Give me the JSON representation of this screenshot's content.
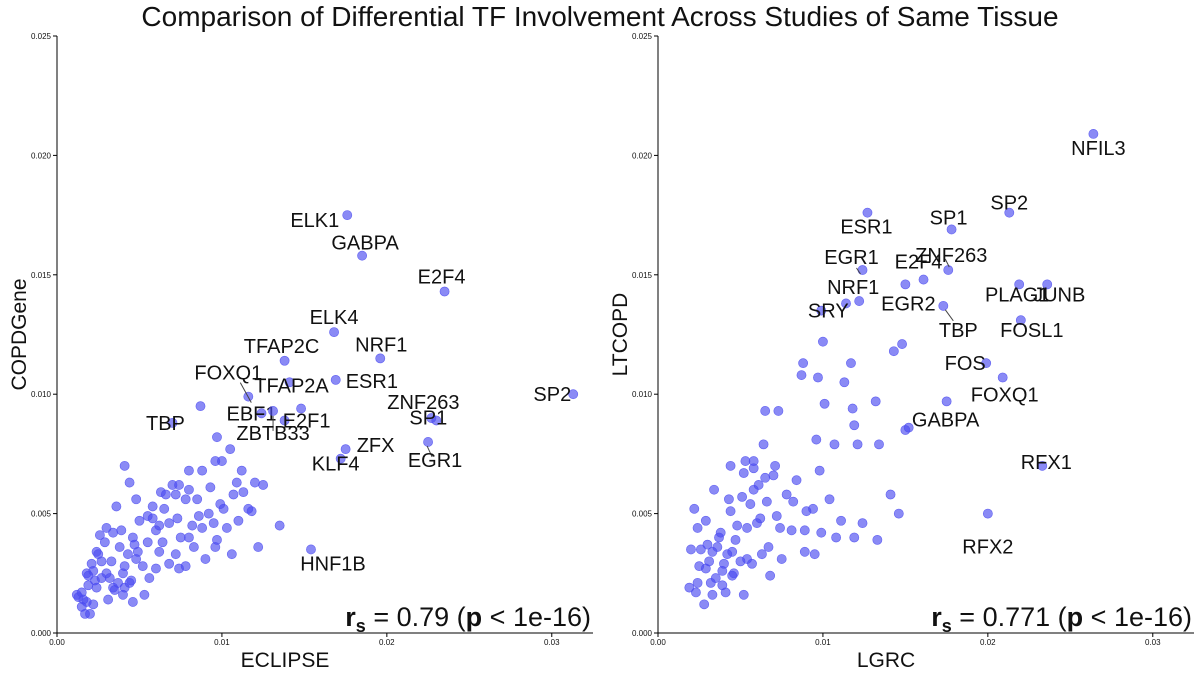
{
  "title": "Comparison of Differential TF Involvement Across Studies of Same Tissue",
  "colors": {
    "points": "#4b4bf0",
    "axis": "#000000",
    "connector": "#444444"
  },
  "chart_data": [
    {
      "type": "scatter",
      "xlabel": "ECLIPSE",
      "ylabel": "COPDGene",
      "xlim": [
        0,
        0.0325
      ],
      "ylim": [
        0,
        0.025
      ],
      "xticks": [
        "0.00",
        "0.01",
        "0.02",
        "0.03"
      ],
      "yticks": [
        "0.000",
        "0.005",
        "0.010",
        "0.015",
        "0.020",
        "0.025"
      ],
      "grid": false,
      "stat": {
        "r_label": "r",
        "r_sub": "s",
        "r_value": "0.79",
        "p_label": "p",
        "p_value": "1e-16"
      },
      "labeled_points": [
        {
          "label": "ELK1",
          "x": 0.0176,
          "y": 0.0175
        },
        {
          "label": "GABPA",
          "x": 0.0185,
          "y": 0.0158
        },
        {
          "label": "E2F4",
          "x": 0.0235,
          "y": 0.0143
        },
        {
          "label": "ELK4",
          "x": 0.0168,
          "y": 0.0126
        },
        {
          "label": "TFAP2C",
          "x": 0.0138,
          "y": 0.0114
        },
        {
          "label": "NRF1",
          "x": 0.0196,
          "y": 0.0115
        },
        {
          "label": "FOXQ1",
          "x": 0.0116,
          "y": 0.0099
        },
        {
          "label": "TFAP2A",
          "x": 0.0141,
          "y": 0.0105
        },
        {
          "label": "ESR1",
          "x": 0.0169,
          "y": 0.0106
        },
        {
          "label": "SP2",
          "x": 0.0313,
          "y": 0.01
        },
        {
          "label": "TBP",
          "x": 0.007,
          "y": 0.0088
        },
        {
          "label": "EBF1",
          "x": 0.0124,
          "y": 0.0092
        },
        {
          "label": "E2F1",
          "x": 0.0138,
          "y": 0.0089
        },
        {
          "label": "ZNF263",
          "x": 0.0227,
          "y": 0.009
        },
        {
          "label": "ZBTB33",
          "x": 0.0131,
          "y": 0.0093
        },
        {
          "label": "SP1",
          "x": 0.023,
          "y": 0.0089
        },
        {
          "label": "ZFX",
          "x": 0.0175,
          "y": 0.0077
        },
        {
          "label": "EGR1",
          "x": 0.0225,
          "y": 0.008
        },
        {
          "label": "KLF4",
          "x": 0.0172,
          "y": 0.0073
        },
        {
          "label": "HNF1B",
          "x": 0.0154,
          "y": 0.0035
        }
      ],
      "points": [
        [
          0.0135,
          0.0045
        ],
        [
          0.0148,
          0.0094
        ],
        [
          0.0087,
          0.0095
        ],
        [
          0.0097,
          0.0082
        ],
        [
          0.0105,
          0.0077
        ],
        [
          0.0122,
          0.0036
        ],
        [
          0.0112,
          0.0068
        ],
        [
          0.012,
          0.0063
        ],
        [
          0.0096,
          0.0072
        ],
        [
          0.008,
          0.0068
        ],
        [
          0.0088,
          0.0068
        ],
        [
          0.0072,
          0.0058
        ],
        [
          0.0063,
          0.0059
        ],
        [
          0.0058,
          0.0053
        ],
        [
          0.007,
          0.0062
        ],
        [
          0.008,
          0.006
        ],
        [
          0.0085,
          0.0056
        ],
        [
          0.0092,
          0.005
        ],
        [
          0.0099,
          0.0054
        ],
        [
          0.0101,
          0.0052
        ],
        [
          0.0107,
          0.0058
        ],
        [
          0.011,
          0.0047
        ],
        [
          0.0116,
          0.0052
        ],
        [
          0.0103,
          0.0044
        ],
        [
          0.0097,
          0.0039
        ],
        [
          0.0088,
          0.0044
        ],
        [
          0.008,
          0.004
        ],
        [
          0.0073,
          0.0048
        ],
        [
          0.0068,
          0.0046
        ],
        [
          0.0065,
          0.0052
        ],
        [
          0.006,
          0.0043
        ],
        [
          0.0055,
          0.0038
        ],
        [
          0.005,
          0.0047
        ],
        [
          0.0048,
          0.0056
        ],
        [
          0.0044,
          0.0063
        ],
        [
          0.0041,
          0.007
        ],
        [
          0.0036,
          0.0053
        ],
        [
          0.003,
          0.0044
        ],
        [
          0.0029,
          0.0038
        ],
        [
          0.0027,
          0.003
        ],
        [
          0.0024,
          0.0034
        ],
        [
          0.0022,
          0.0026
        ],
        [
          0.0019,
          0.002
        ],
        [
          0.0018,
          0.0013
        ],
        [
          0.0015,
          0.0011
        ],
        [
          0.0012,
          0.0016
        ],
        [
          0.0017,
          0.0008
        ],
        [
          0.0023,
          0.0022
        ],
        [
          0.0032,
          0.0023
        ],
        [
          0.0035,
          0.0018
        ],
        [
          0.004,
          0.0025
        ],
        [
          0.0044,
          0.0021
        ],
        [
          0.0048,
          0.0031
        ],
        [
          0.0052,
          0.0028
        ],
        [
          0.0056,
          0.0023
        ],
        [
          0.006,
          0.0027
        ],
        [
          0.0062,
          0.0034
        ],
        [
          0.0068,
          0.0029
        ],
        [
          0.0072,
          0.0033
        ],
        [
          0.0078,
          0.0028
        ],
        [
          0.0083,
          0.0036
        ],
        [
          0.009,
          0.0031
        ],
        [
          0.0096,
          0.0036
        ],
        [
          0.0046,
          0.0013
        ],
        [
          0.004,
          0.0016
        ],
        [
          0.0034,
          0.0019
        ],
        [
          0.003,
          0.0025
        ],
        [
          0.0038,
          0.0036
        ],
        [
          0.0043,
          0.0033
        ],
        [
          0.0053,
          0.0016
        ],
        [
          0.0046,
          0.004
        ],
        [
          0.0039,
          0.0043
        ],
        [
          0.0025,
          0.0033
        ],
        [
          0.0021,
          0.0029
        ],
        [
          0.0015,
          0.0017
        ],
        [
          0.002,
          0.0008
        ],
        [
          0.0018,
          0.0025
        ],
        [
          0.0031,
          0.0014
        ],
        [
          0.0037,
          0.0021
        ],
        [
          0.0041,
          0.0028
        ],
        [
          0.0055,
          0.0049
        ],
        [
          0.0062,
          0.0045
        ],
        [
          0.0066,
          0.0058
        ],
        [
          0.0074,
          0.0062
        ],
        [
          0.0078,
          0.0056
        ],
        [
          0.0086,
          0.0049
        ],
        [
          0.0093,
          0.0061
        ],
        [
          0.01,
          0.0072
        ],
        [
          0.0109,
          0.0063
        ],
        [
          0.0113,
          0.0059
        ],
        [
          0.0118,
          0.0051
        ],
        [
          0.0125,
          0.0062
        ],
        [
          0.0106,
          0.0033
        ],
        [
          0.0095,
          0.0046
        ],
        [
          0.0074,
          0.0027
        ],
        [
          0.0064,
          0.0038
        ],
        [
          0.0049,
          0.0034
        ],
        [
          0.0045,
          0.0022
        ],
        [
          0.0041,
          0.0019
        ],
        [
          0.0033,
          0.003
        ],
        [
          0.0027,
          0.0023
        ],
        [
          0.0024,
          0.0019
        ],
        [
          0.0019,
          0.0024
        ],
        [
          0.0016,
          0.0014
        ],
        [
          0.0013,
          0.0015
        ],
        [
          0.0022,
          0.0012
        ],
        [
          0.0026,
          0.0041
        ],
        [
          0.0034,
          0.0042
        ],
        [
          0.0047,
          0.0037
        ],
        [
          0.0058,
          0.0048
        ],
        [
          0.0075,
          0.004
        ],
        [
          0.0082,
          0.0045
        ]
      ]
    },
    {
      "type": "scatter",
      "xlabel": "LGRC",
      "ylabel": "LTCOPD",
      "xlim": [
        0,
        0.0325
      ],
      "ylim": [
        0,
        0.025
      ],
      "xticks": [
        "0.00",
        "0.01",
        "0.02",
        "0.03"
      ],
      "yticks": [
        "0.000",
        "0.005",
        "0.010",
        "0.015",
        "0.020",
        "0.025"
      ],
      "grid": false,
      "stat": {
        "r_label": "r",
        "r_sub": "s",
        "r_value": "0.771",
        "p_label": "p",
        "p_value": "1e-16"
      },
      "labeled_points": [
        {
          "label": "NFIL3",
          "x": 0.0264,
          "y": 0.0209
        },
        {
          "label": "SP2",
          "x": 0.0213,
          "y": 0.0176
        },
        {
          "label": "ESR1",
          "x": 0.0127,
          "y": 0.0176
        },
        {
          "label": "SP1",
          "x": 0.0178,
          "y": 0.0169
        },
        {
          "label": "ZNF263",
          "x": 0.0176,
          "y": 0.0152
        },
        {
          "label": "EGR1",
          "x": 0.0124,
          "y": 0.0152
        },
        {
          "label": "E2F4",
          "x": 0.0161,
          "y": 0.0148
        },
        {
          "label": "NRF1",
          "x": 0.0122,
          "y": 0.0139
        },
        {
          "label": "PLAG1",
          "x": 0.0219,
          "y": 0.0146
        },
        {
          "label": "JUNB",
          "x": 0.0236,
          "y": 0.0146
        },
        {
          "label": "EGR2",
          "x": 0.015,
          "y": 0.0146
        },
        {
          "label": "SRY",
          "x": 0.0099,
          "y": 0.0135
        },
        {
          "label": "TBP",
          "x": 0.0173,
          "y": 0.0137
        },
        {
          "label": "FOSL1",
          "x": 0.022,
          "y": 0.0131
        },
        {
          "label": "FOS",
          "x": 0.0199,
          "y": 0.0113
        },
        {
          "label": "FOXQ1",
          "x": 0.0209,
          "y": 0.0107
        },
        {
          "label": "GABPA",
          "x": 0.0175,
          "y": 0.0097
        },
        {
          "label": "RFX1",
          "x": 0.0233,
          "y": 0.007
        },
        {
          "label": "RFX2",
          "x": 0.02,
          "y": 0.005
        }
      ],
      "points": [
        [
          0.0114,
          0.0138
        ],
        [
          0.01,
          0.0122
        ],
        [
          0.0143,
          0.0118
        ],
        [
          0.0148,
          0.0121
        ],
        [
          0.0088,
          0.0113
        ],
        [
          0.0117,
          0.0113
        ],
        [
          0.0087,
          0.0108
        ],
        [
          0.0097,
          0.0107
        ],
        [
          0.0113,
          0.0105
        ],
        [
          0.0101,
          0.0096
        ],
        [
          0.0118,
          0.0094
        ],
        [
          0.0132,
          0.0097
        ],
        [
          0.015,
          0.0085
        ],
        [
          0.0152,
          0.0086
        ],
        [
          0.0134,
          0.0079
        ],
        [
          0.0119,
          0.0087
        ],
        [
          0.0107,
          0.0079
        ],
        [
          0.0096,
          0.0081
        ],
        [
          0.0065,
          0.0093
        ],
        [
          0.0073,
          0.0093
        ],
        [
          0.0064,
          0.0079
        ],
        [
          0.007,
          0.0066
        ],
        [
          0.0078,
          0.0058
        ],
        [
          0.0098,
          0.0068
        ],
        [
          0.0141,
          0.0058
        ],
        [
          0.0146,
          0.005
        ],
        [
          0.0133,
          0.0039
        ],
        [
          0.0124,
          0.0046
        ],
        [
          0.0111,
          0.0047
        ],
        [
          0.0104,
          0.0056
        ],
        [
          0.0094,
          0.0052
        ],
        [
          0.0089,
          0.0043
        ],
        [
          0.0081,
          0.0043
        ],
        [
          0.0072,
          0.0049
        ],
        [
          0.0066,
          0.0055
        ],
        [
          0.0061,
          0.0062
        ],
        [
          0.0058,
          0.0069
        ],
        [
          0.0053,
          0.0072
        ],
        [
          0.0044,
          0.007
        ],
        [
          0.0034,
          0.006
        ],
        [
          0.0022,
          0.0052
        ],
        [
          0.002,
          0.0035
        ],
        [
          0.0024,
          0.0044
        ],
        [
          0.0029,
          0.0047
        ],
        [
          0.0038,
          0.0042
        ],
        [
          0.0044,
          0.0051
        ],
        [
          0.0051,
          0.0057
        ],
        [
          0.0054,
          0.0044
        ],
        [
          0.006,
          0.0046
        ],
        [
          0.0067,
          0.0036
        ],
        [
          0.0075,
          0.0031
        ],
        [
          0.0089,
          0.0034
        ],
        [
          0.0095,
          0.0033
        ],
        [
          0.0108,
          0.004
        ],
        [
          0.0119,
          0.004
        ],
        [
          0.0042,
          0.0033
        ],
        [
          0.0036,
          0.0036
        ],
        [
          0.0031,
          0.003
        ],
        [
          0.0025,
          0.0028
        ],
        [
          0.0019,
          0.0019
        ],
        [
          0.0023,
          0.0017
        ],
        [
          0.0028,
          0.0012
        ],
        [
          0.0033,
          0.0016
        ],
        [
          0.0039,
          0.002
        ],
        [
          0.0045,
          0.0024
        ],
        [
          0.005,
          0.003
        ],
        [
          0.0057,
          0.0029
        ],
        [
          0.0063,
          0.0033
        ],
        [
          0.0068,
          0.0024
        ],
        [
          0.0052,
          0.0016
        ],
        [
          0.0041,
          0.0017
        ],
        [
          0.0035,
          0.0023
        ],
        [
          0.0029,
          0.0027
        ],
        [
          0.0026,
          0.0035
        ],
        [
          0.004,
          0.0029
        ],
        [
          0.0047,
          0.0039
        ],
        [
          0.0056,
          0.0054
        ],
        [
          0.0062,
          0.0048
        ],
        [
          0.0043,
          0.0056
        ],
        [
          0.0052,
          0.0067
        ],
        [
          0.0039,
          0.0026
        ],
        [
          0.0032,
          0.0021
        ],
        [
          0.0045,
          0.0034
        ],
        [
          0.0054,
          0.0031
        ],
        [
          0.0074,
          0.0044
        ],
        [
          0.0082,
          0.0055
        ],
        [
          0.009,
          0.0051
        ],
        [
          0.0099,
          0.0042
        ],
        [
          0.003,
          0.0037
        ],
        [
          0.0037,
          0.004
        ],
        [
          0.0048,
          0.0045
        ],
        [
          0.0024,
          0.0021
        ],
        [
          0.0033,
          0.0034
        ],
        [
          0.0058,
          0.006
        ],
        [
          0.0065,
          0.0065
        ],
        [
          0.0071,
          0.007
        ],
        [
          0.0084,
          0.0064
        ],
        [
          0.0121,
          0.0079
        ],
        [
          0.0058,
          0.0072
        ],
        [
          0.0046,
          0.0025
        ]
      ]
    }
  ]
}
